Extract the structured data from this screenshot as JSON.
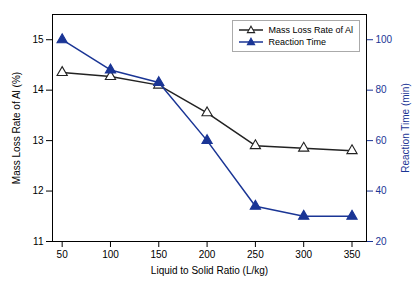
{
  "chart_data": {
    "type": "line",
    "x": [
      50,
      100,
      150,
      200,
      250,
      300,
      350
    ],
    "series": [
      {
        "name": "Mass Loss Rate of Al",
        "color": "#222222",
        "marker": "triangle-open",
        "values": [
          14.35,
          14.27,
          14.1,
          13.55,
          12.9,
          12.85,
          12.8
        ]
      },
      {
        "name": "Reaction Time",
        "color": "#1a3595",
        "marker": "triangle",
        "axis": "y2",
        "values": [
          100,
          88,
          83,
          60,
          34,
          30,
          30
        ]
      }
    ],
    "xlabel": "Liquid to Solid Ratio (L/kg)",
    "ylabel": "Mass Loss Rate of Al (%)",
    "y2label": "Reaction Time (min)",
    "xlim": [
      40,
      365
    ],
    "xticks": [
      50,
      100,
      150,
      200,
      250,
      300,
      350
    ],
    "ylim": [
      11,
      15.5
    ],
    "yticks": [
      11,
      12,
      13,
      14,
      15
    ],
    "y2lim": [
      20,
      110
    ],
    "y2ticks": [
      20,
      40,
      60,
      80,
      100
    ],
    "legend": "upper right"
  }
}
